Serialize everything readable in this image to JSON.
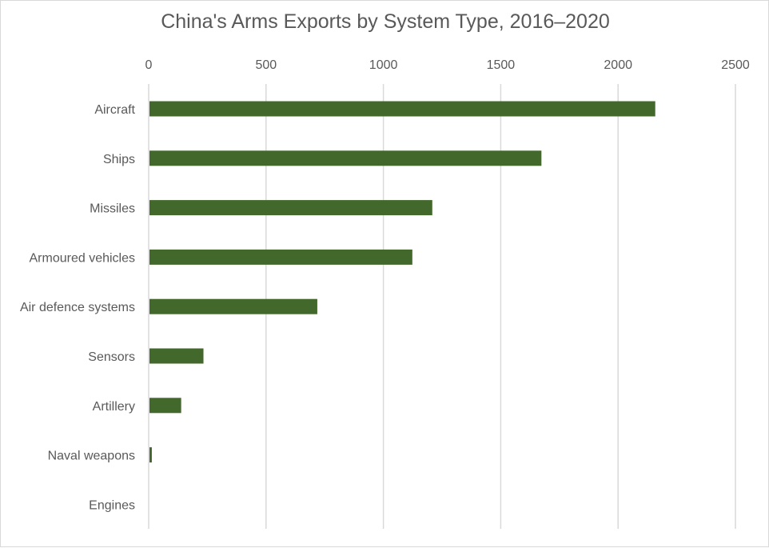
{
  "chart_data": {
    "type": "bar",
    "orientation": "horizontal",
    "title": "China's Arms Exports by System Type, 2016–2020",
    "categories": [
      "Aircraft",
      "Ships",
      "Missiles",
      "Armoured vehicles",
      "Air defence systems",
      "Sensors",
      "Artillery",
      "Naval weapons",
      "Engines"
    ],
    "values": [
      2155,
      1670,
      1205,
      1120,
      715,
      230,
      135,
      10,
      0
    ],
    "xlim": [
      0,
      2500
    ],
    "ticks": [
      0,
      500,
      1000,
      1500,
      2000,
      2500
    ],
    "tick_labels": [
      "0",
      "500",
      "1000",
      "1500",
      "2000",
      "2500"
    ],
    "axis_position": "top",
    "grid": true,
    "legend": "none",
    "bar_color": "#43682b",
    "xlabel": "",
    "ylabel": ""
  }
}
